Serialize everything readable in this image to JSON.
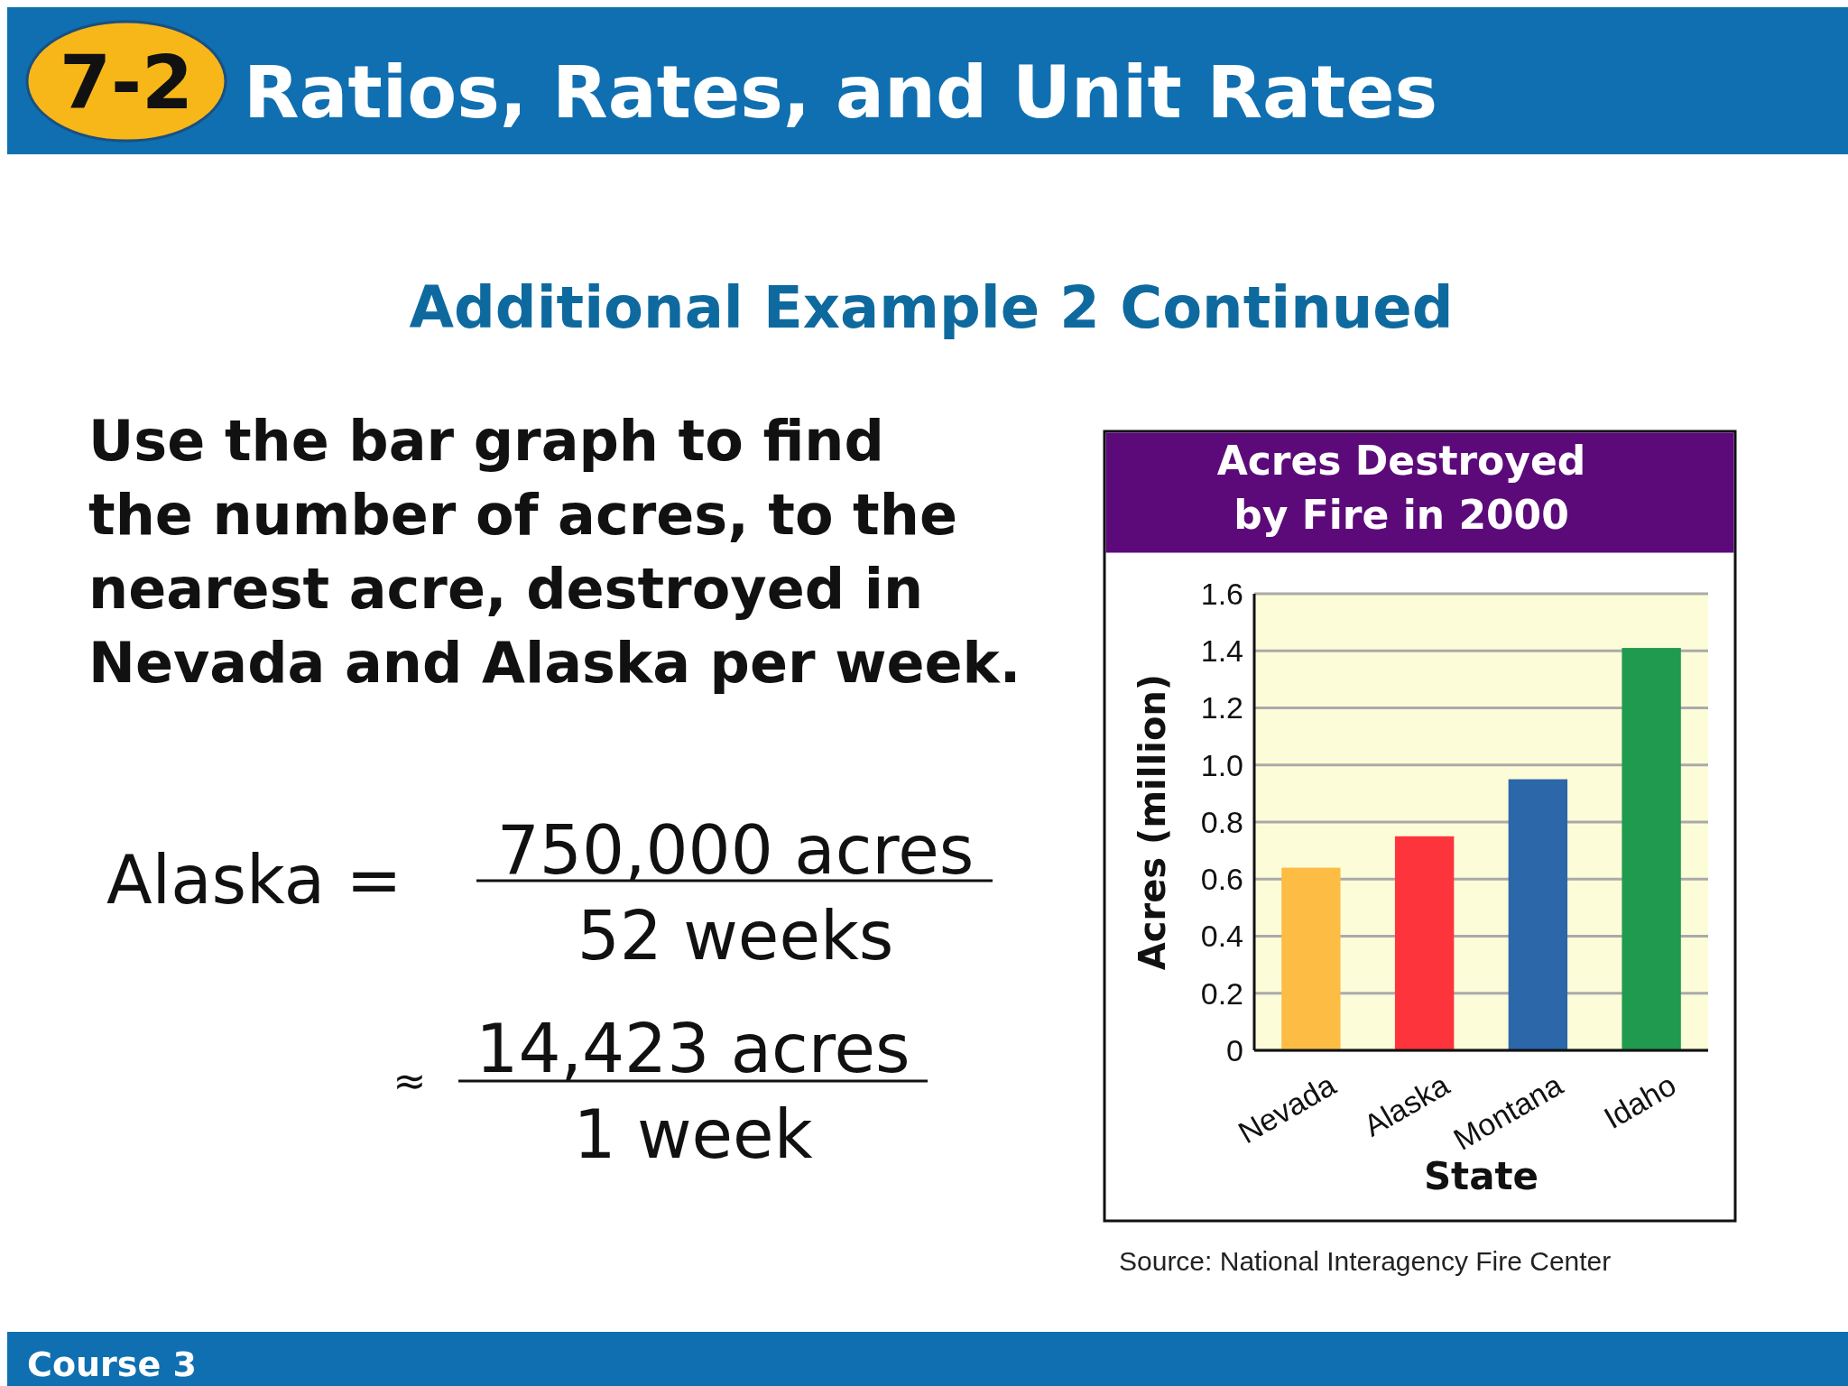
{
  "chart_data": {
    "type": "bar",
    "title": "Acres Destroyed by Fire in 2000",
    "xlabel": "State",
    "ylabel": "Acres (million)",
    "categories": [
      "Nevada",
      "Alaska",
      "Montana",
      "Idaho"
    ],
    "values": [
      0.64,
      0.75,
      0.95,
      1.41
    ],
    "colors": [
      "#fdbd45",
      "#fe343c",
      "#2b67a9",
      "#1f9a4e"
    ],
    "ylim": [
      0,
      1.6
    ],
    "yticks": [
      0,
      0.2,
      0.4,
      0.6,
      0.8,
      {
        "value": 1,
        "label": "1.0"
      },
      1.2,
      1.4,
      1.6
    ],
    "grid": "y",
    "annotations": [
      "7-2",
      "Ratios, Rates, and Unit Rates",
      "Additional Example 2 Continued",
      "Use the bar graph to find the number of acres, to the nearest acre, destroyed in Nevada and Alaska per week.",
      "Alaska =",
      "750,000 acres",
      "52 weeks",
      "≈",
      "14,423 acres",
      "1 week",
      "Source: National Interagency Fire Center",
      "Course 3"
    ]
  }
}
